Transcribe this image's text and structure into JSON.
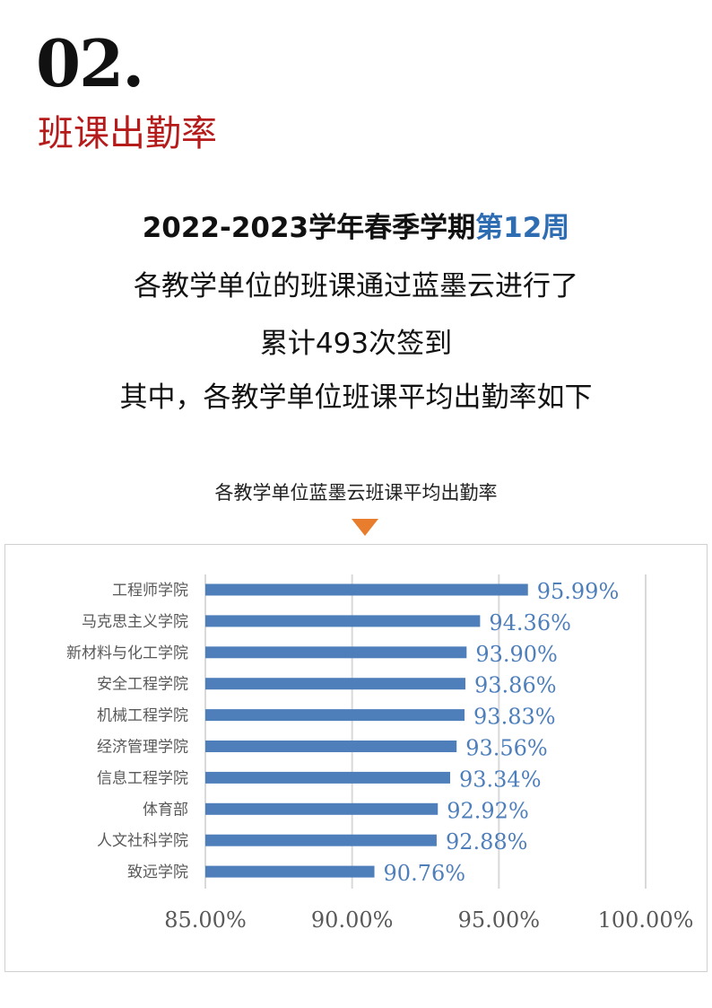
{
  "header": {
    "number": "02.",
    "section_title": "班课出勤率"
  },
  "intro": {
    "line1_prefix": "2022-2023学年春季学期",
    "line1_highlight": "第12周",
    "line2": "各教学单位的班课通过蓝墨云进行了",
    "line3": "累计493次签到",
    "line4": "其中，各教学单位班课平均出勤率如下"
  },
  "chart_title": "各教学单位蓝墨云班课平均出勤率",
  "chart_data": {
    "type": "bar",
    "orientation": "horizontal",
    "categories": [
      "工程师学院",
      "马克思主义学院",
      "新材料与化工学院",
      "安全工程学院",
      "机械工程学院",
      "经济管理学院",
      "信息工程学院",
      "体育部",
      "人文社科学院",
      "致远学院"
    ],
    "values": [
      95.99,
      94.36,
      93.9,
      93.86,
      93.83,
      93.56,
      93.34,
      92.92,
      92.88,
      90.76
    ],
    "data_labels": [
      "95.99%",
      "94.36%",
      "93.90%",
      "93.86%",
      "93.83%",
      "93.56%",
      "93.34%",
      "92.92%",
      "92.88%",
      "90.76%"
    ],
    "xlim": [
      85,
      100
    ],
    "xticks": [
      85,
      90,
      95,
      100
    ],
    "xtick_labels": [
      "85.00%",
      "90.00%",
      "95.00%",
      "100.00%"
    ],
    "grid": true,
    "bar_color": "#4e7fbb",
    "label_color": "#4e7fbb"
  }
}
